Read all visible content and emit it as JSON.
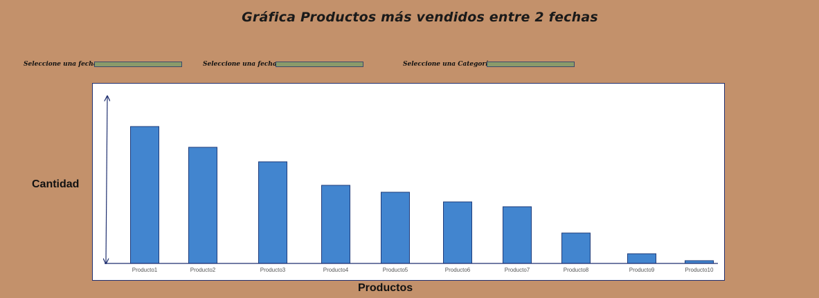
{
  "page": {
    "title": "Gráfica Productos más vendidos entre 2 fechas"
  },
  "filters": [
    {
      "label": "Seleccione una fecha",
      "value": ""
    },
    {
      "label": "Seleccione una fecha",
      "value": ""
    },
    {
      "label": "Seleccione una Categoría",
      "value": ""
    }
  ],
  "colors": {
    "background": "#c3916b",
    "bar_fill": "#4285cf",
    "bar_stroke": "#1f3b7a",
    "axis": "#1f2f6f",
    "filter_fill": "#8a9a6a"
  },
  "chart_data": {
    "type": "bar",
    "title": "",
    "xlabel": "Productos",
    "ylabel": "Cantidad",
    "categories": [
      "Producto1",
      "Producto2",
      "Producto3",
      "Producto4",
      "Producto5",
      "Producto6",
      "Producto7",
      "Producto8",
      "Producto9",
      "Producto10"
    ],
    "values": [
      198,
      168,
      147,
      113,
      103,
      89,
      82,
      44,
      14,
      4
    ],
    "ylim": [
      0,
      240
    ],
    "grid": false,
    "legend": "none"
  }
}
